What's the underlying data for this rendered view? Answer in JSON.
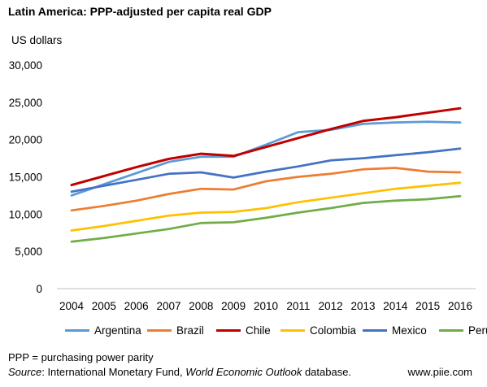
{
  "page": {
    "title": "Latin America: PPP-adjusted per capita real GDP",
    "units": "US dollars",
    "note": "PPP = purchasing power parity",
    "source_label": "Source",
    "source_sep": ": ",
    "source_org": "International Monetary Fund, ",
    "source_pub": "World Economic Outlook",
    "source_tail": " database.",
    "url": "www.piie.com"
  },
  "chart_data": {
    "type": "line",
    "title": "Latin America: PPP-adjusted per capita real GDP",
    "ylabel": "US dollars",
    "xlabel": "",
    "x": [
      "2004",
      "2005",
      "2006",
      "2007",
      "2008",
      "2009",
      "2010",
      "2011",
      "2012",
      "2013",
      "2014",
      "2015",
      "2016"
    ],
    "ylim": [
      0,
      30000
    ],
    "yticks": [
      0,
      5000,
      10000,
      15000,
      20000,
      25000,
      30000
    ],
    "ytick_labels": [
      "0",
      "5,000",
      "10,000",
      "15,000",
      "20,000",
      "25,000",
      "30,000"
    ],
    "grid": false,
    "legend_position": "bottom",
    "series": [
      {
        "name": "Argentina",
        "color": "#5B9BD5",
        "values": [
          12500,
          14000,
          15500,
          17000,
          17700,
          17700,
          19300,
          21000,
          21300,
          22100,
          22300,
          22400,
          22300
        ]
      },
      {
        "name": "Brazil",
        "color": "#ED7D31",
        "values": [
          10500,
          11100,
          11800,
          12700,
          13400,
          13300,
          14400,
          15000,
          15400,
          16000,
          16200,
          15700,
          15600
        ]
      },
      {
        "name": "Chile",
        "color": "#C00000",
        "values": [
          13900,
          15100,
          16300,
          17400,
          18100,
          17800,
          19000,
          20200,
          21400,
          22500,
          23000,
          23600,
          24200
        ]
      },
      {
        "name": "Colombia",
        "color": "#FFC000",
        "values": [
          7800,
          8400,
          9100,
          9800,
          10200,
          10300,
          10800,
          11600,
          12200,
          12800,
          13400,
          13800,
          14200
        ]
      },
      {
        "name": "Mexico",
        "color": "#4472C4",
        "values": [
          13000,
          13800,
          14600,
          15400,
          15600,
          14900,
          15700,
          16400,
          17200,
          17500,
          17900,
          18300,
          18800
        ]
      },
      {
        "name": "Peru",
        "color": "#70AD47",
        "values": [
          6300,
          6800,
          7400,
          8000,
          8800,
          8900,
          9500,
          10200,
          10800,
          11500,
          11800,
          12000,
          12400
        ]
      }
    ]
  }
}
